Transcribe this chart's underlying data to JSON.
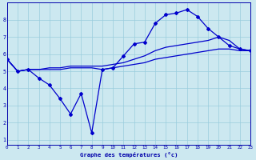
{
  "line_marked": {
    "x": [
      0,
      1,
      2,
      3,
      4,
      5,
      6,
      7,
      8,
      9,
      10,
      11,
      12,
      13,
      14,
      15,
      16,
      17,
      18,
      19,
      20,
      21,
      22,
      23
    ],
    "y": [
      5.7,
      5.0,
      5.1,
      4.6,
      4.2,
      3.4,
      2.5,
      3.7,
      1.4,
      5.1,
      5.2,
      5.9,
      6.6,
      6.7,
      7.8,
      8.3,
      8.4,
      8.6,
      8.2,
      7.5,
      7.0,
      6.5,
      6.3,
      6.2
    ]
  },
  "line_upper": {
    "x": [
      0,
      1,
      2,
      3,
      4,
      5,
      6,
      7,
      8,
      9,
      10,
      11,
      12,
      13,
      14,
      15,
      16,
      17,
      18,
      19,
      20,
      21,
      22,
      23
    ],
    "y": [
      5.7,
      5.0,
      5.1,
      5.1,
      5.2,
      5.2,
      5.3,
      5.3,
      5.3,
      5.3,
      5.4,
      5.5,
      5.7,
      5.9,
      6.2,
      6.4,
      6.5,
      6.6,
      6.7,
      6.8,
      7.0,
      6.8,
      6.3,
      6.2
    ]
  },
  "line_lower": {
    "x": [
      0,
      1,
      2,
      3,
      4,
      5,
      6,
      7,
      8,
      9,
      10,
      11,
      12,
      13,
      14,
      15,
      16,
      17,
      18,
      19,
      20,
      21,
      22,
      23
    ],
    "y": [
      5.7,
      5.0,
      5.1,
      5.1,
      5.1,
      5.1,
      5.2,
      5.2,
      5.2,
      5.1,
      5.2,
      5.3,
      5.4,
      5.5,
      5.7,
      5.8,
      5.9,
      6.0,
      6.1,
      6.2,
      6.3,
      6.3,
      6.2,
      6.2
    ]
  },
  "xlim": [
    0,
    23
  ],
  "ylim": [
    0.7,
    9.0
  ],
  "xlabel": "Graphe des températures (°c)",
  "xticks": [
    0,
    1,
    2,
    3,
    4,
    5,
    6,
    7,
    8,
    9,
    10,
    11,
    12,
    13,
    14,
    15,
    16,
    17,
    18,
    19,
    20,
    21,
    22,
    23
  ],
  "yticks": [
    1,
    2,
    3,
    4,
    5,
    6,
    7,
    8
  ],
  "bg_color": "#cce8f0",
  "grid_color": "#99ccdd",
  "line_color": "#0000cc",
  "axis_label_color": "#0000aa"
}
